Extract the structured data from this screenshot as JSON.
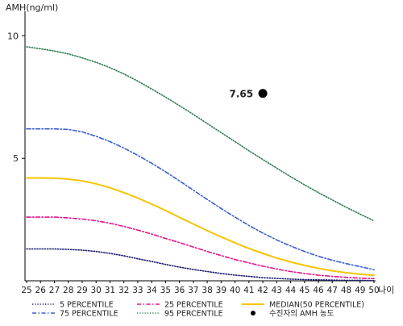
{
  "chart_data": {
    "type": "line",
    "title": "",
    "ylabel": "AMH(ng/ml)",
    "xlabel": "나이",
    "ylim": [
      0,
      11
    ],
    "yticks": [
      5,
      10
    ],
    "x": [
      25,
      26,
      27,
      28,
      29,
      30,
      31,
      32,
      33,
      34,
      35,
      36,
      37,
      38,
      39,
      40,
      41,
      42,
      43,
      44,
      45,
      46,
      47,
      48,
      49,
      50
    ],
    "grid": false,
    "legend_position": "bottom",
    "series": [
      {
        "name": "5 PERCENTILE",
        "color": "#1a1a6e",
        "style": "dotted",
        "values": [
          1.3,
          1.3,
          1.3,
          1.28,
          1.25,
          1.2,
          1.12,
          1.02,
          0.9,
          0.79,
          0.67,
          0.56,
          0.46,
          0.38,
          0.3,
          0.23,
          0.18,
          0.13,
          0.1,
          0.07,
          0.05,
          0.04,
          0.03,
          0.02,
          0.02,
          0.01
        ]
      },
      {
        "name": "25 PERCENTILE",
        "color": "#e0158a",
        "style": "dashdot",
        "values": [
          2.6,
          2.6,
          2.6,
          2.57,
          2.52,
          2.45,
          2.35,
          2.22,
          2.07,
          1.91,
          1.73,
          1.56,
          1.38,
          1.2,
          1.03,
          0.87,
          0.73,
          0.6,
          0.48,
          0.38,
          0.3,
          0.23,
          0.18,
          0.14,
          0.11,
          0.09
        ]
      },
      {
        "name": "MEDIAN(50 PERCENTILE)",
        "color": "#f5c400",
        "style": "solid",
        "values": [
          4.2,
          4.2,
          4.19,
          4.15,
          4.08,
          3.96,
          3.8,
          3.6,
          3.38,
          3.13,
          2.87,
          2.59,
          2.32,
          2.05,
          1.79,
          1.55,
          1.32,
          1.12,
          0.93,
          0.77,
          0.63,
          0.51,
          0.41,
          0.33,
          0.27,
          0.22
        ]
      },
      {
        "name": "75 PERCENTILE",
        "color": "#3a5fc8",
        "style": "dashdot",
        "values": [
          6.2,
          6.2,
          6.2,
          6.18,
          6.08,
          5.9,
          5.68,
          5.42,
          5.12,
          4.8,
          4.45,
          4.08,
          3.7,
          3.32,
          2.95,
          2.6,
          2.26,
          1.95,
          1.67,
          1.42,
          1.2,
          1.0,
          0.84,
          0.7,
          0.58,
          0.45
        ]
      },
      {
        "name": "95 PERCENTILE",
        "color": "#2e7d4f",
        "style": "dotted",
        "values": [
          9.55,
          9.47,
          9.38,
          9.26,
          9.1,
          8.92,
          8.7,
          8.44,
          8.15,
          7.83,
          7.5,
          7.15,
          6.79,
          6.42,
          6.05,
          5.68,
          5.31,
          4.95,
          4.6,
          4.25,
          3.92,
          3.6,
          3.3,
          3.0,
          2.72,
          2.45
        ]
      }
    ],
    "points": [
      {
        "name": "수진자의 AMH 농도",
        "x": 42,
        "y": 7.65,
        "label": "7.65",
        "color": "#000000"
      }
    ]
  }
}
